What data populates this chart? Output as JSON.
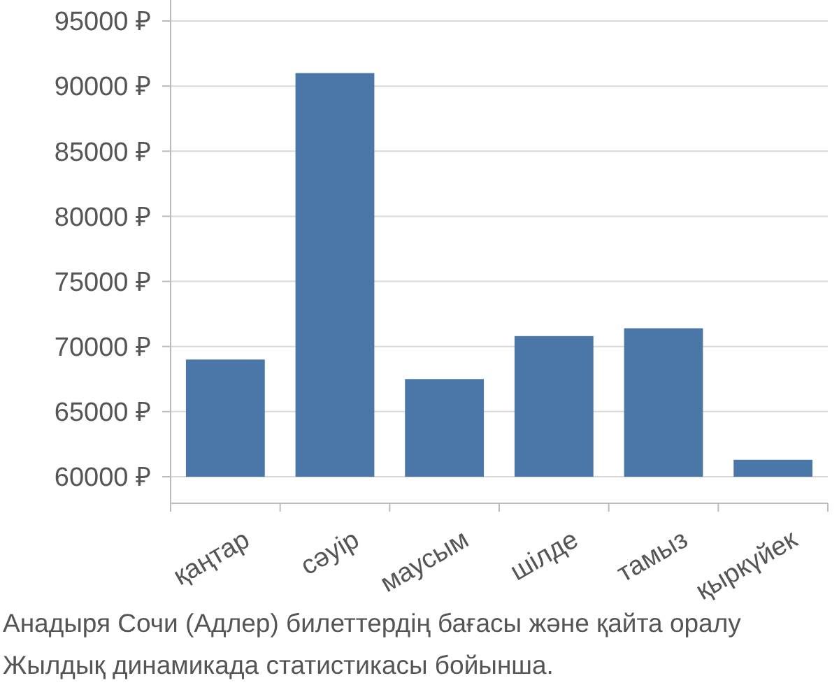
{
  "chart_data": {
    "type": "bar",
    "categories": [
      "қаңтар",
      "сәуір",
      "маусым",
      "шілде",
      "тамыз",
      "қыркүйек"
    ],
    "values": [
      69000,
      91000,
      67500,
      70800,
      71400,
      61300
    ],
    "color": "#4a76a8",
    "ylim": [
      60000,
      95000
    ],
    "yticks": [
      {
        "value": 60000,
        "label": "60000 ₽"
      },
      {
        "value": 65000,
        "label": "65000 ₽"
      },
      {
        "value": 70000,
        "label": "70000 ₽"
      },
      {
        "value": 75000,
        "label": "75000 ₽"
      },
      {
        "value": 80000,
        "label": "80000 ₽"
      },
      {
        "value": 85000,
        "label": "85000 ₽"
      },
      {
        "value": 90000,
        "label": "90000 ₽"
      },
      {
        "value": 95000,
        "label": "95000 ₽"
      }
    ],
    "grid": "y",
    "annotations": [
      "Анадыря Сочи (Адлер) билеттердің бағасы және қайта оралу",
      "Жылдық динамикада статистикасы бойынша."
    ]
  }
}
